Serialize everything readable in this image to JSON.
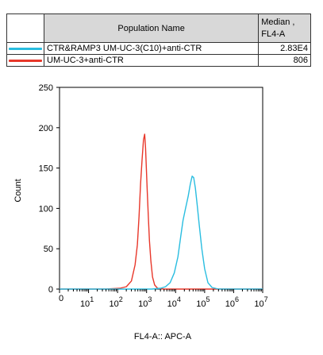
{
  "legend": {
    "header_name": "Population Name",
    "header_median_line1": "Median ,",
    "header_median_line2": "FL4-A",
    "rows": [
      {
        "name": "CTR&RAMP3 UM-UC-3(C10)+anti-CTR",
        "median": "2.83E4",
        "color": "#29bde0"
      },
      {
        "name": "UM-UC-3+anti-CTR",
        "median": "806",
        "color": "#e8372a"
      }
    ]
  },
  "chart_data": {
    "type": "line",
    "xlabel": "FL4-A:: APC-A",
    "ylabel": "Count",
    "x_scale": "log",
    "xlim": [
      1,
      10000000
    ],
    "ylim": [
      0,
      250
    ],
    "yticks": [
      0,
      50,
      100,
      150,
      200,
      250
    ],
    "xticks": [
      {
        "base": "10",
        "exp": "1",
        "value": 10
      },
      {
        "base": "10",
        "exp": "2",
        "value": 100
      },
      {
        "base": "10",
        "exp": "3",
        "value": 1000
      },
      {
        "base": "10",
        "exp": "4",
        "value": 10000
      },
      {
        "base": "10",
        "exp": "5",
        "value": 100000
      },
      {
        "base": "10",
        "exp": "6",
        "value": 1000000
      },
      {
        "base": "10",
        "exp": "7",
        "value": 10000000
      }
    ],
    "series": [
      {
        "name": "UM-UC-3+anti-CTR",
        "color": "#e8372a",
        "points": [
          [
            1,
            0
          ],
          [
            40,
            0
          ],
          [
            120,
            1
          ],
          [
            200,
            3
          ],
          [
            300,
            10
          ],
          [
            400,
            30
          ],
          [
            480,
            55
          ],
          [
            550,
            90
          ],
          [
            620,
            130
          ],
          [
            700,
            160
          ],
          [
            780,
            185
          ],
          [
            860,
            192
          ],
          [
            920,
            175
          ],
          [
            980,
            150
          ],
          [
            1060,
            120
          ],
          [
            1150,
            90
          ],
          [
            1250,
            60
          ],
          [
            1400,
            35
          ],
          [
            1600,
            15
          ],
          [
            1900,
            5
          ],
          [
            2400,
            1
          ],
          [
            4000,
            0
          ],
          [
            10000000,
            0
          ]
        ]
      },
      {
        "name": "CTR&RAMP3 UM-UC-3(C10)+anti-CTR",
        "color": "#29bde0",
        "points": [
          [
            1,
            0
          ],
          [
            1500,
            0
          ],
          [
            3000,
            1
          ],
          [
            4500,
            3
          ],
          [
            6500,
            8
          ],
          [
            9000,
            20
          ],
          [
            12000,
            40
          ],
          [
            15000,
            65
          ],
          [
            18000,
            85
          ],
          [
            22000,
            100
          ],
          [
            27000,
            115
          ],
          [
            32000,
            130
          ],
          [
            37000,
            140
          ],
          [
            42000,
            138
          ],
          [
            48000,
            125
          ],
          [
            55000,
            105
          ],
          [
            65000,
            80
          ],
          [
            80000,
            50
          ],
          [
            100000,
            25
          ],
          [
            130000,
            8
          ],
          [
            180000,
            2
          ],
          [
            300000,
            0
          ],
          [
            10000000,
            0
          ]
        ]
      }
    ]
  }
}
